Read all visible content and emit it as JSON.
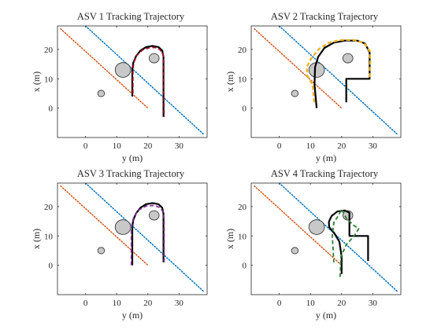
{
  "chart_data": [
    {
      "type": "line",
      "title": "ASV 1 Tracking Trajectory",
      "xlabel": "y (m)",
      "ylabel": "x (m)",
      "xlim": [
        -9,
        39
      ],
      "ylim": [
        -10,
        28
      ],
      "xticks": [
        "0",
        "10",
        "20",
        "30"
      ],
      "yticks": [
        "0",
        "10",
        "20"
      ],
      "grid": false,
      "boundary_lines": [
        {
          "color": "#D95319",
          "style": "dotted",
          "points": [
            [
              -8,
              27
            ],
            [
              20,
              0
            ]
          ]
        },
        {
          "color": "#0072BD",
          "style": "dotted",
          "points": [
            [
              0,
              28
            ],
            [
              38,
              -9
            ]
          ]
        }
      ],
      "obstacles": [
        {
          "center": [
            12,
            13
          ],
          "radius": 2.5
        },
        {
          "center": [
            22,
            17
          ],
          "radius": 1.6
        },
        {
          "center": [
            5,
            5
          ],
          "radius": 1.1
        }
      ],
      "series": [
        {
          "role": "reference",
          "color": "#000000",
          "style": "solid",
          "width": 2.2,
          "points": [
            [
              15,
              4
            ],
            [
              15,
              13
            ],
            [
              15.3,
              15.4
            ],
            [
              16.2,
              17.7
            ],
            [
              17.6,
              19.6
            ],
            [
              19.4,
              20.8
            ],
            [
              21.5,
              21.2
            ],
            [
              23.4,
              20.8
            ],
            [
              24.6,
              19.6
            ],
            [
              25,
              17.5
            ],
            [
              25,
              8
            ],
            [
              25,
              -3
            ]
          ]
        },
        {
          "role": "asv-trajectory",
          "color": "#A2142F",
          "style": "dashed",
          "width": 1.8,
          "points": [
            [
              15.2,
              5
            ],
            [
              15.2,
              13
            ],
            [
              15.5,
              15.6
            ],
            [
              16.5,
              18
            ],
            [
              18.3,
              19.8
            ],
            [
              20.5,
              20.6
            ],
            [
              22.2,
              20.7
            ],
            [
              23.8,
              20
            ],
            [
              24.8,
              18.5
            ],
            [
              25.1,
              16
            ],
            [
              25.1,
              8
            ],
            [
              25.2,
              -3
            ]
          ]
        }
      ]
    },
    {
      "type": "line",
      "title": "ASV 2 Tracking Trajectory",
      "xlabel": "y (m)",
      "ylabel": "x (m)",
      "xlim": [
        -9,
        39
      ],
      "ylim": [
        -10,
        28
      ],
      "xticks": [
        "0",
        "10",
        "20",
        "30"
      ],
      "yticks": [
        "0",
        "10",
        "20"
      ],
      "grid": false,
      "boundary_lines": [
        {
          "color": "#D95319",
          "style": "dotted",
          "points": [
            [
              -8,
              27
            ],
            [
              20,
              0
            ]
          ]
        },
        {
          "color": "#0072BD",
          "style": "dotted",
          "points": [
            [
              0,
              28
            ],
            [
              38,
              -9
            ]
          ]
        }
      ],
      "obstacles": [
        {
          "center": [
            12,
            13
          ],
          "radius": 2.5
        },
        {
          "center": [
            22,
            17
          ],
          "radius": 1.6
        },
        {
          "center": [
            5,
            5
          ],
          "radius": 1.1
        }
      ],
      "series": [
        {
          "role": "reference",
          "color": "#000000",
          "style": "solid",
          "width": 2.2,
          "points": [
            [
              12,
              0
            ],
            [
              11.3,
              8
            ],
            [
              11.5,
              14
            ],
            [
              12.5,
              17.5
            ],
            [
              14.5,
              20.5
            ],
            [
              17.5,
              22.3
            ],
            [
              21,
              23
            ],
            [
              25,
              23
            ],
            [
              27.5,
              22
            ],
            [
              29,
              19
            ],
            [
              29,
              10
            ],
            [
              21.5,
              10
            ],
            [
              21.5,
              2
            ]
          ]
        },
        {
          "role": "asv-trajectory",
          "color": "#EDB120",
          "style": "dashed",
          "width": 2.4,
          "points": [
            [
              11.2,
              2
            ],
            [
              10.7,
              8
            ],
            [
              9,
              11
            ],
            [
              8.8,
              14
            ],
            [
              10.3,
              17
            ],
            [
              12.8,
              20.2
            ],
            [
              15.8,
              22.2
            ],
            [
              19.5,
              23.2
            ],
            [
              24,
              23.2
            ],
            [
              27.2,
              22.2
            ],
            [
              29,
              19.5
            ],
            [
              29.2,
              16
            ],
            [
              29,
              10.5
            ]
          ]
        }
      ]
    },
    {
      "type": "line",
      "title": "ASV 3 Tracking Trajectory",
      "xlabel": "y (m)",
      "ylabel": "x (m)",
      "xlim": [
        -9,
        39
      ],
      "ylim": [
        -10,
        28
      ],
      "xticks": [
        "0",
        "10",
        "20",
        "30"
      ],
      "yticks": [
        "0",
        "10",
        "20"
      ],
      "grid": false,
      "boundary_lines": [
        {
          "color": "#D95319",
          "style": "dotted",
          "points": [
            [
              -8,
              27
            ],
            [
              20,
              0
            ]
          ]
        },
        {
          "color": "#0072BD",
          "style": "dotted",
          "points": [
            [
              0,
              28
            ],
            [
              38,
              -9
            ]
          ]
        }
      ],
      "obstacles": [
        {
          "center": [
            12,
            13
          ],
          "radius": 2.5
        },
        {
          "center": [
            22,
            17
          ],
          "radius": 1.6
        },
        {
          "center": [
            5,
            5
          ],
          "radius": 1.1
        }
      ],
      "series": [
        {
          "role": "reference",
          "color": "#000000",
          "style": "solid",
          "width": 2.2,
          "points": [
            [
              15,
              0
            ],
            [
              15,
              13
            ],
            [
              15.3,
              15.4
            ],
            [
              16.2,
              17.7
            ],
            [
              17.6,
              19.6
            ],
            [
              19.4,
              20.8
            ],
            [
              21.5,
              21.2
            ],
            [
              23.4,
              20.8
            ],
            [
              24.6,
              19.6
            ],
            [
              25,
              17.5
            ],
            [
              25,
              8
            ],
            [
              25,
              1
            ]
          ]
        },
        {
          "role": "asv-trajectory",
          "color": "#7E2F8E",
          "style": "dashed",
          "width": 1.8,
          "points": [
            [
              14.7,
              0
            ],
            [
              14.7,
              12
            ],
            [
              15,
              14.5
            ],
            [
              15.5,
              16.5
            ],
            [
              17,
              18.8
            ],
            [
              19.5,
              20.2
            ],
            [
              22,
              20.4
            ],
            [
              24,
              19.6
            ],
            [
              25,
              18
            ],
            [
              25.2,
              15
            ],
            [
              25.2,
              1
            ]
          ]
        }
      ]
    },
    {
      "type": "line",
      "title": "ASV 4 Tracking Trajectory",
      "xlabel": "y (m)",
      "ylabel": "x (m)",
      "xlim": [
        -9,
        39
      ],
      "ylim": [
        -10,
        28
      ],
      "xticks": [
        "0",
        "10",
        "20",
        "30"
      ],
      "yticks": [
        "0",
        "10",
        "20"
      ],
      "grid": false,
      "boundary_lines": [
        {
          "color": "#D95319",
          "style": "dotted",
          "points": [
            [
              -8,
              27
            ],
            [
              20,
              0
            ]
          ]
        },
        {
          "color": "#0072BD",
          "style": "dotted",
          "points": [
            [
              0,
              28
            ],
            [
              38,
              -9
            ]
          ]
        }
      ],
      "obstacles": [
        {
          "center": [
            12,
            13
          ],
          "radius": 2.5
        },
        {
          "center": [
            22,
            17
          ],
          "radius": 1.6
        },
        {
          "center": [
            5,
            5
          ],
          "radius": 1.1
        }
      ],
      "series": [
        {
          "role": "reference",
          "color": "#000000",
          "style": "solid",
          "width": 2.2,
          "points": [
            [
              20,
              -3
            ],
            [
              20,
              3
            ],
            [
              19.3,
              8
            ],
            [
              17.6,
              11
            ],
            [
              16,
              13
            ],
            [
              15.9,
              14.8
            ],
            [
              16.8,
              16.8
            ],
            [
              18.6,
              18.3
            ],
            [
              21,
              18.7
            ],
            [
              22.5,
              17.9
            ],
            [
              22.5,
              10
            ],
            [
              28.5,
              10
            ],
            [
              28.5,
              1.5
            ]
          ]
        },
        {
          "role": "asv-trajectory",
          "color": "#2E7D32",
          "style": "dashed",
          "width": 1.8,
          "points": [
            [
              19.5,
              -4
            ],
            [
              19.8,
              3
            ],
            [
              21.5,
              7
            ],
            [
              24,
              10
            ],
            [
              25.5,
              12.5
            ],
            [
              24,
              13.5
            ],
            [
              21.5,
              16
            ],
            [
              20,
              19
            ],
            [
              19,
              17
            ],
            [
              17.5,
              14.5
            ],
            [
              17,
              10
            ],
            [
              17.3,
              5
            ],
            [
              17.5,
              1
            ]
          ]
        }
      ]
    }
  ]
}
